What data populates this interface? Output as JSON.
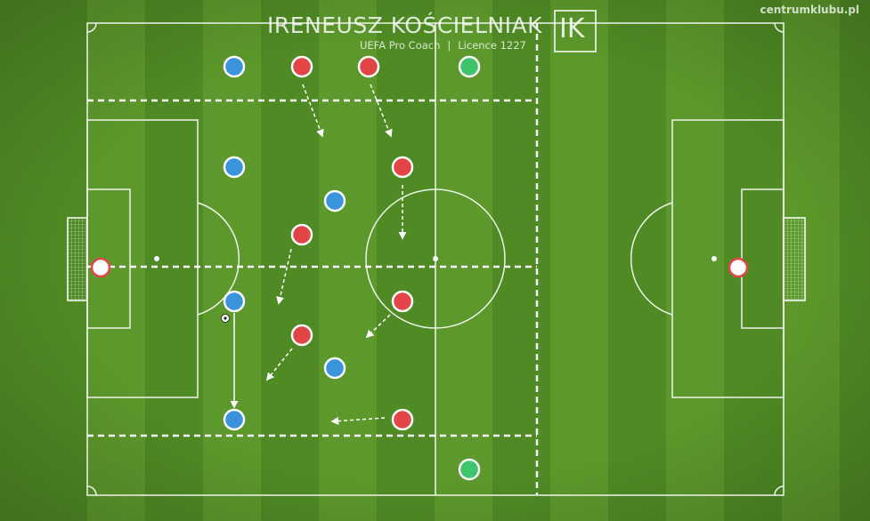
{
  "header": {
    "coach_name": "IRENEUSZ KOŚCIELNIAK",
    "coach_title": "UEFA Pro Coach",
    "licence": "Licence 1227",
    "logo_text": "IK",
    "site": "centrumklubu.pl"
  },
  "colors": {
    "team_blue": "#3b93dd",
    "team_red": "#e24545",
    "neutral_green": "#3cc56a",
    "goalkeeper": "#ffffff",
    "pitch_light": "#5e9a2c",
    "pitch_dark": "#4f8a24"
  },
  "players": {
    "blue": [
      "blue",
      "blue",
      "blue",
      "blue",
      "blue",
      "blue"
    ],
    "red": [
      "red",
      "red",
      "red",
      "red",
      "red",
      "red",
      "red",
      "red"
    ],
    "neutral": [
      "green",
      "green"
    ],
    "goalkeepers": [
      "white",
      "white"
    ]
  },
  "ball_icon": "soccer-ball-icon"
}
